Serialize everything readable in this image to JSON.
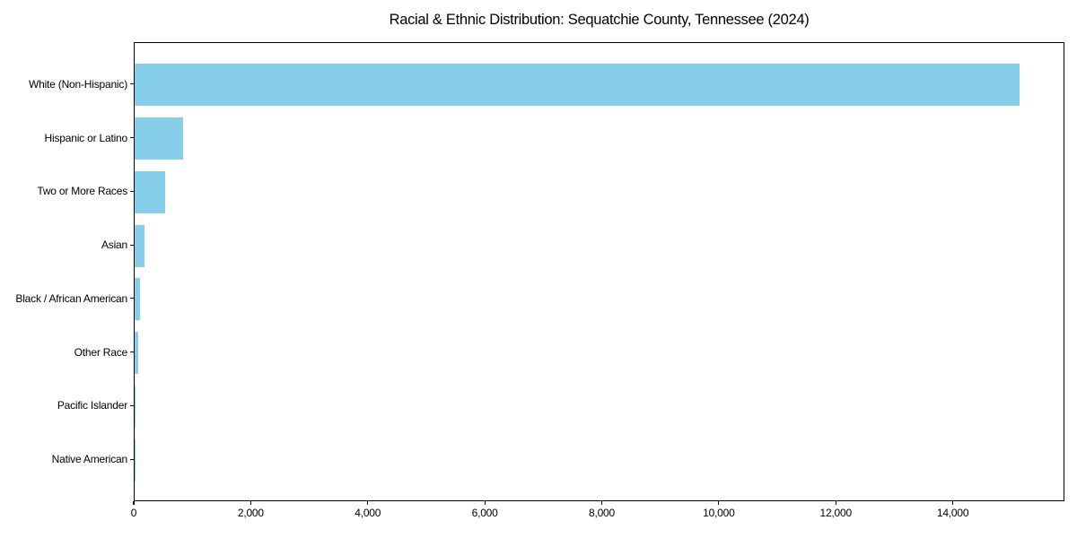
{
  "title": "Racial & Ethnic Distribution: Sequatchie County, Tennessee (2024)",
  "colors": {
    "bar": "#87CEEB",
    "background": "#FFFFFF",
    "axis": "#000000",
    "text": "#000000"
  },
  "chart_data": {
    "type": "bar",
    "orientation": "horizontal",
    "title": "Racial & Ethnic Distribution: Sequatchie County, Tennessee (2024)",
    "categories": [
      "White (Non-Hispanic)",
      "Hispanic or Latino",
      "Two or More Races",
      "Asian",
      "Black / African American",
      "Other Race",
      "Pacific Islander",
      "Native American"
    ],
    "values": [
      15150,
      830,
      530,
      165,
      90,
      60,
      15,
      5
    ],
    "xlabel": "",
    "ylabel": "",
    "xlim": [
      0,
      15908
    ],
    "xticks": [
      0,
      2000,
      4000,
      6000,
      8000,
      10000,
      12000,
      14000
    ],
    "xtick_labels": [
      "0",
      "2,000",
      "4,000",
      "6,000",
      "8,000",
      "10,000",
      "12,000",
      "14,000"
    ],
    "bar_color": "#87CEEB",
    "grid": false,
    "legend": null
  }
}
